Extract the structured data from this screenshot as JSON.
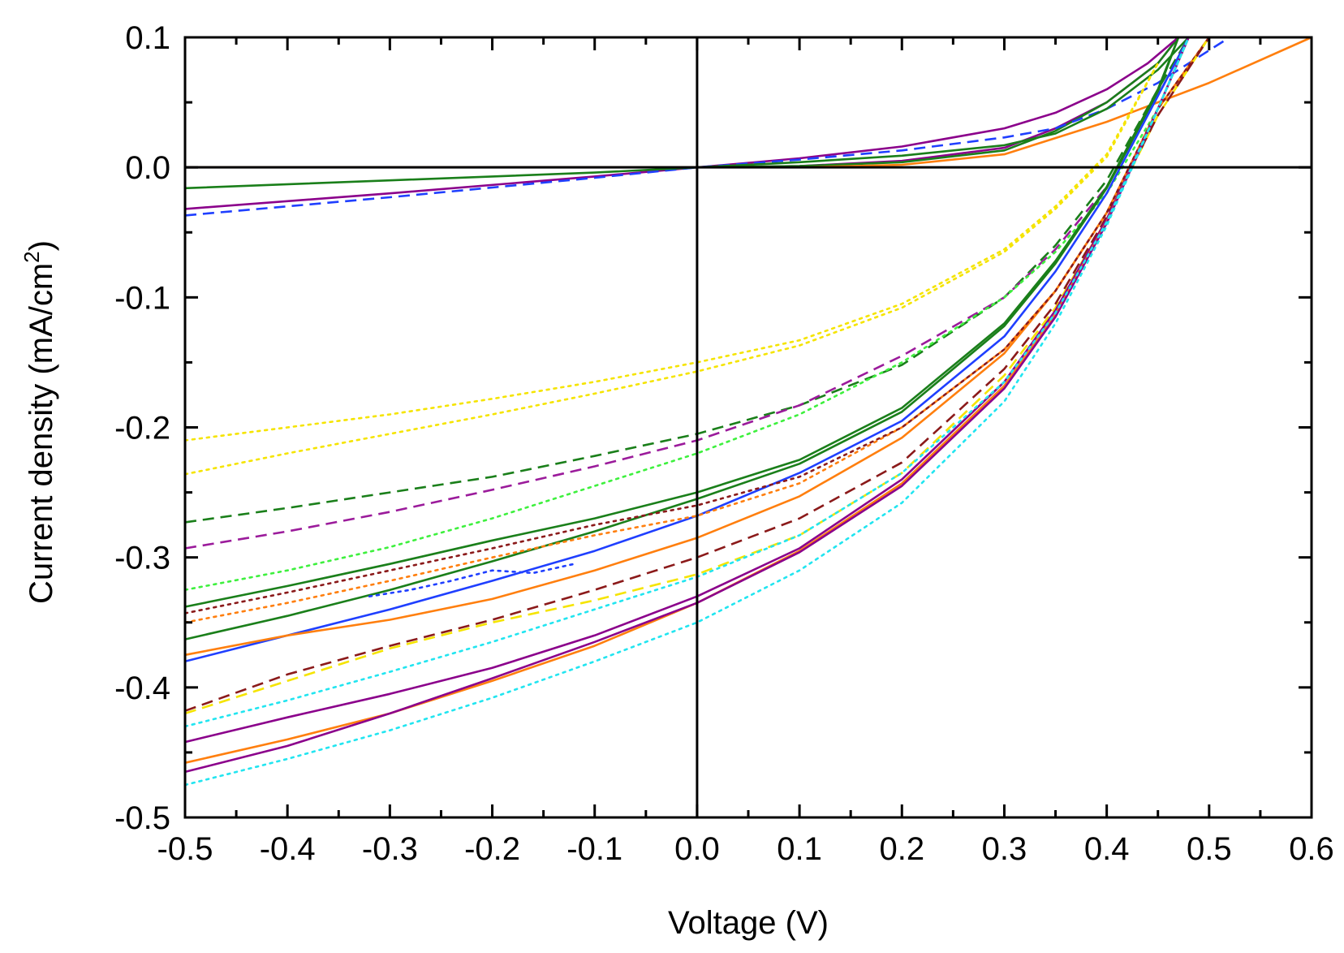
{
  "chart_data": {
    "type": "line",
    "title": "",
    "xlabel": "Voltage (V)",
    "ylabel_main": "Current density (mA/cm",
    "ylabel_sup": "2",
    "ylabel_close": ")",
    "xlim": [
      -0.5,
      0.6
    ],
    "ylim": [
      -0.5,
      0.1
    ],
    "xticks": [
      -0.5,
      -0.4,
      -0.3,
      -0.2,
      -0.1,
      0.0,
      0.1,
      0.2,
      0.3,
      0.4,
      0.5,
      0.6
    ],
    "xtick_labels": [
      "-0.5",
      "-0.4",
      "-0.3",
      "-0.2",
      "-0.1",
      "0.0",
      "0.1",
      "0.2",
      "0.3",
      "0.4",
      "0.5",
      "0.6"
    ],
    "yticks": [
      -0.5,
      -0.4,
      -0.3,
      -0.2,
      -0.1,
      0.0,
      0.1
    ],
    "ytick_labels": [
      "-0.5",
      "-0.4",
      "-0.3",
      "-0.2",
      "-0.1",
      "0.0",
      "0.1"
    ],
    "grid": false,
    "reference_lines": {
      "x": 0,
      "y": 0
    },
    "series": [
      {
        "name": "dark-purple-solid",
        "color": "#8b008b",
        "style": "solid",
        "x": [
          -0.5,
          -0.3,
          -0.1,
          0.0,
          0.1,
          0.2,
          0.3,
          0.35,
          0.4,
          0.45,
          0.47
        ],
        "y": [
          0.0,
          0.0,
          0.0,
          0.0,
          0.001,
          0.005,
          0.015,
          0.03,
          0.05,
          0.08,
          0.1
        ]
      },
      {
        "name": "dark-green-solid",
        "color": "#1a7f1a",
        "style": "solid",
        "x": [
          -0.5,
          -0.3,
          -0.1,
          0.0,
          0.1,
          0.2,
          0.3,
          0.35,
          0.4,
          0.45,
          0.47
        ],
        "y": [
          0.0,
          0.0,
          0.0,
          0.0,
          0.001,
          0.004,
          0.013,
          0.028,
          0.05,
          0.08,
          0.1
        ]
      },
      {
        "name": "orange-solid",
        "color": "#ff7f0e",
        "style": "solid",
        "x": [
          -0.5,
          -0.3,
          -0.1,
          0.0,
          0.1,
          0.2,
          0.3,
          0.4,
          0.5,
          0.6
        ],
        "y": [
          0.0,
          0.0,
          0.0,
          0.0,
          0.0,
          0.002,
          0.01,
          0.035,
          0.065,
          0.1
        ]
      },
      {
        "name": "purple-solid",
        "color": "#8b008b",
        "style": "solid",
        "x": [
          -0.5,
          -0.3,
          -0.1,
          0.0,
          0.1,
          0.2,
          0.3,
          0.35,
          0.4,
          0.44,
          0.47
        ],
        "y": [
          -0.032,
          -0.02,
          -0.007,
          0.0,
          0.007,
          0.016,
          0.03,
          0.042,
          0.06,
          0.08,
          0.1
        ]
      },
      {
        "name": "blue-dashed",
        "color": "#1f3fff",
        "style": "dashed",
        "x": [
          -0.5,
          -0.3,
          -0.1,
          0.0,
          0.1,
          0.2,
          0.3,
          0.35,
          0.4,
          0.45,
          0.52
        ],
        "y": [
          -0.037,
          -0.023,
          -0.008,
          0.0,
          0.006,
          0.013,
          0.023,
          0.03,
          0.045,
          0.065,
          0.1
        ]
      },
      {
        "name": "green-solid",
        "color": "#1a7f1a",
        "style": "solid",
        "x": [
          -0.5,
          -0.3,
          -0.1,
          0.0,
          0.1,
          0.2,
          0.3,
          0.35,
          0.4,
          0.45,
          0.48
        ],
        "y": [
          -0.016,
          -0.01,
          -0.004,
          0.0,
          0.004,
          0.009,
          0.017,
          0.026,
          0.045,
          0.075,
          0.1
        ]
      },
      {
        "name": "yellow-dotted",
        "color": "#f5e400",
        "style": "dotted",
        "x": [
          -0.5,
          -0.4,
          -0.3,
          -0.2,
          -0.1,
          0.0,
          0.1,
          0.2,
          0.3,
          0.35,
          0.4,
          0.45
        ],
        "y": [
          -0.21,
          -0.2,
          -0.19,
          -0.178,
          -0.165,
          -0.15,
          -0.133,
          -0.105,
          -0.063,
          -0.03,
          0.01,
          0.08
        ]
      },
      {
        "name": "yellow-dotted-2",
        "color": "#f5e400",
        "style": "dotted",
        "x": [
          -0.5,
          -0.4,
          -0.3,
          -0.2,
          -0.1,
          0.0,
          0.1,
          0.2,
          0.3,
          0.35,
          0.4,
          0.45
        ],
        "y": [
          -0.236,
          -0.22,
          -0.205,
          -0.19,
          -0.174,
          -0.157,
          -0.137,
          -0.108,
          -0.065,
          -0.032,
          0.008,
          0.08
        ]
      },
      {
        "name": "dark-green-dashed",
        "color": "#1a7f1a",
        "style": "dashed",
        "x": [
          -0.5,
          -0.4,
          -0.3,
          -0.2,
          -0.1,
          0.0,
          0.1,
          0.2,
          0.3,
          0.35,
          0.4,
          0.45,
          0.48
        ],
        "y": [
          -0.273,
          -0.262,
          -0.25,
          -0.238,
          -0.222,
          -0.205,
          -0.183,
          -0.152,
          -0.1,
          -0.06,
          -0.01,
          0.06,
          0.1
        ]
      },
      {
        "name": "purple-dashed",
        "color": "#9b1b9b",
        "style": "dashed",
        "x": [
          -0.5,
          -0.4,
          -0.3,
          -0.2,
          -0.1,
          0.0,
          0.1,
          0.2,
          0.3,
          0.35,
          0.4,
          0.45,
          0.48
        ],
        "y": [
          -0.293,
          -0.28,
          -0.265,
          -0.248,
          -0.23,
          -0.21,
          -0.183,
          -0.145,
          -0.1,
          -0.063,
          -0.015,
          0.055,
          0.1
        ]
      },
      {
        "name": "lime-dotted",
        "color": "#3ef03e",
        "style": "dotted",
        "x": [
          -0.5,
          -0.4,
          -0.3,
          -0.2,
          -0.1,
          0.0,
          0.1,
          0.2,
          0.3,
          0.35,
          0.4,
          0.45,
          0.5
        ],
        "y": [
          -0.325,
          -0.31,
          -0.292,
          -0.27,
          -0.245,
          -0.22,
          -0.19,
          -0.15,
          -0.1,
          -0.065,
          -0.02,
          0.045,
          0.1
        ]
      },
      {
        "name": "green-solid-2",
        "color": "#1a7f1a",
        "style": "solid",
        "x": [
          -0.5,
          -0.4,
          -0.3,
          -0.2,
          -0.1,
          0.0,
          0.1,
          0.2,
          0.3,
          0.35,
          0.4,
          0.45,
          0.47
        ],
        "y": [
          -0.338,
          -0.322,
          -0.305,
          -0.287,
          -0.27,
          -0.25,
          -0.225,
          -0.185,
          -0.12,
          -0.072,
          -0.015,
          0.06,
          0.1
        ]
      },
      {
        "name": "green-solid-3",
        "color": "#1a7f1a",
        "style": "solid",
        "x": [
          -0.5,
          -0.4,
          -0.3,
          -0.2,
          -0.1,
          0.0,
          0.1,
          0.2,
          0.3,
          0.35,
          0.4,
          0.45,
          0.47
        ],
        "y": [
          -0.363,
          -0.345,
          -0.325,
          -0.303,
          -0.28,
          -0.255,
          -0.228,
          -0.188,
          -0.122,
          -0.074,
          -0.016,
          0.058,
          0.1
        ]
      },
      {
        "name": "blue-solid",
        "color": "#1f3fff",
        "style": "solid",
        "x": [
          -0.5,
          -0.4,
          -0.3,
          -0.2,
          -0.1,
          0.0,
          0.1,
          0.2,
          0.3,
          0.35,
          0.4,
          0.45,
          0.48
        ],
        "y": [
          -0.38,
          -0.36,
          -0.34,
          -0.318,
          -0.295,
          -0.268,
          -0.235,
          -0.195,
          -0.13,
          -0.08,
          -0.02,
          0.055,
          0.1
        ]
      },
      {
        "name": "blue-dotted",
        "color": "#1f3fff",
        "style": "dotted",
        "x": [
          -0.32,
          -0.28,
          -0.24,
          -0.2,
          -0.16,
          -0.12
        ],
        "y": [
          -0.33,
          -0.325,
          -0.318,
          -0.31,
          -0.312,
          -0.305
        ]
      },
      {
        "name": "orange-solid-2",
        "color": "#ff7f0e",
        "style": "solid",
        "x": [
          -0.5,
          -0.4,
          -0.3,
          -0.2,
          -0.1,
          0.0,
          0.1,
          0.2,
          0.3,
          0.35,
          0.4,
          0.45,
          0.5
        ],
        "y": [
          -0.375,
          -0.36,
          -0.348,
          -0.332,
          -0.31,
          -0.285,
          -0.253,
          -0.208,
          -0.143,
          -0.095,
          -0.035,
          0.045,
          0.1
        ]
      },
      {
        "name": "orange-dotted",
        "color": "#ff7f0e",
        "style": "dotted",
        "x": [
          -0.5,
          -0.4,
          -0.3,
          -0.2,
          -0.1,
          0.0,
          0.1,
          0.2,
          0.3,
          0.35,
          0.4,
          0.45,
          0.5
        ],
        "y": [
          -0.35,
          -0.335,
          -0.318,
          -0.3,
          -0.283,
          -0.268,
          -0.243,
          -0.2,
          -0.14,
          -0.095,
          -0.035,
          0.045,
          0.1
        ]
      },
      {
        "name": "dark-red-dotted",
        "color": "#8b1a1a",
        "style": "dotted",
        "x": [
          -0.5,
          -0.4,
          -0.3,
          -0.2,
          -0.1,
          0.0,
          0.1,
          0.2,
          0.3,
          0.35,
          0.4,
          0.45,
          0.5
        ],
        "y": [
          -0.343,
          -0.327,
          -0.31,
          -0.293,
          -0.275,
          -0.26,
          -0.238,
          -0.2,
          -0.14,
          -0.095,
          -0.035,
          0.045,
          0.1
        ]
      },
      {
        "name": "yellow-dashed",
        "color": "#f5e400",
        "style": "dashed",
        "x": [
          -0.5,
          -0.4,
          -0.3,
          -0.2,
          -0.1,
          0.0,
          0.1,
          0.2,
          0.3,
          0.35,
          0.4,
          0.45,
          0.5
        ],
        "y": [
          -0.42,
          -0.395,
          -0.37,
          -0.35,
          -0.333,
          -0.313,
          -0.283,
          -0.235,
          -0.16,
          -0.108,
          -0.04,
          0.04,
          0.1
        ]
      },
      {
        "name": "dark-red-dashed",
        "color": "#8b1a1a",
        "style": "dashed",
        "x": [
          -0.5,
          -0.4,
          -0.3,
          -0.2,
          -0.1,
          0.0,
          0.1,
          0.2,
          0.3,
          0.35,
          0.4,
          0.45,
          0.5
        ],
        "y": [
          -0.418,
          -0.39,
          -0.368,
          -0.348,
          -0.325,
          -0.3,
          -0.27,
          -0.227,
          -0.155,
          -0.105,
          -0.038,
          0.04,
          0.1
        ]
      },
      {
        "name": "purple-solid-2",
        "color": "#8b008b",
        "style": "solid",
        "x": [
          -0.5,
          -0.4,
          -0.3,
          -0.2,
          -0.1,
          0.0,
          0.1,
          0.2,
          0.3,
          0.35,
          0.4,
          0.45,
          0.48
        ],
        "y": [
          -0.442,
          -0.423,
          -0.405,
          -0.385,
          -0.36,
          -0.33,
          -0.293,
          -0.24,
          -0.165,
          -0.11,
          -0.04,
          0.045,
          0.1
        ]
      },
      {
        "name": "orange-solid-3",
        "color": "#ff7f0e",
        "style": "solid",
        "x": [
          -0.5,
          -0.4,
          -0.3,
          -0.2,
          -0.1,
          0.0,
          0.1,
          0.2,
          0.3,
          0.35,
          0.4,
          0.45,
          0.48
        ],
        "y": [
          -0.458,
          -0.44,
          -0.42,
          -0.395,
          -0.368,
          -0.335,
          -0.295,
          -0.243,
          -0.168,
          -0.113,
          -0.042,
          0.045,
          0.1
        ]
      },
      {
        "name": "purple-solid-3",
        "color": "#8b008b",
        "style": "solid",
        "x": [
          -0.5,
          -0.4,
          -0.3,
          -0.2,
          -0.1,
          0.0,
          0.1,
          0.2,
          0.3,
          0.35,
          0.4,
          0.45,
          0.48
        ],
        "y": [
          -0.465,
          -0.445,
          -0.42,
          -0.393,
          -0.365,
          -0.335,
          -0.296,
          -0.245,
          -0.17,
          -0.115,
          -0.043,
          0.045,
          0.1
        ]
      },
      {
        "name": "cyan-dotted",
        "color": "#22e5f0",
        "style": "dotted",
        "x": [
          -0.5,
          -0.4,
          -0.3,
          -0.2,
          -0.1,
          0.0,
          0.1,
          0.2,
          0.3,
          0.35,
          0.4,
          0.45,
          0.48
        ],
        "y": [
          -0.475,
          -0.455,
          -0.433,
          -0.408,
          -0.38,
          -0.35,
          -0.31,
          -0.258,
          -0.18,
          -0.12,
          -0.045,
          0.045,
          0.1
        ]
      },
      {
        "name": "cyan-dotted-2",
        "color": "#22e5f0",
        "style": "dotted",
        "x": [
          -0.5,
          -0.4,
          -0.3,
          -0.2,
          -0.1,
          0.0,
          0.1,
          0.2,
          0.3,
          0.35,
          0.4,
          0.45,
          0.48
        ],
        "y": [
          -0.43,
          -0.41,
          -0.388,
          -0.365,
          -0.34,
          -0.315,
          -0.283,
          -0.235,
          -0.165,
          -0.112,
          -0.042,
          0.045,
          0.1
        ]
      }
    ]
  }
}
